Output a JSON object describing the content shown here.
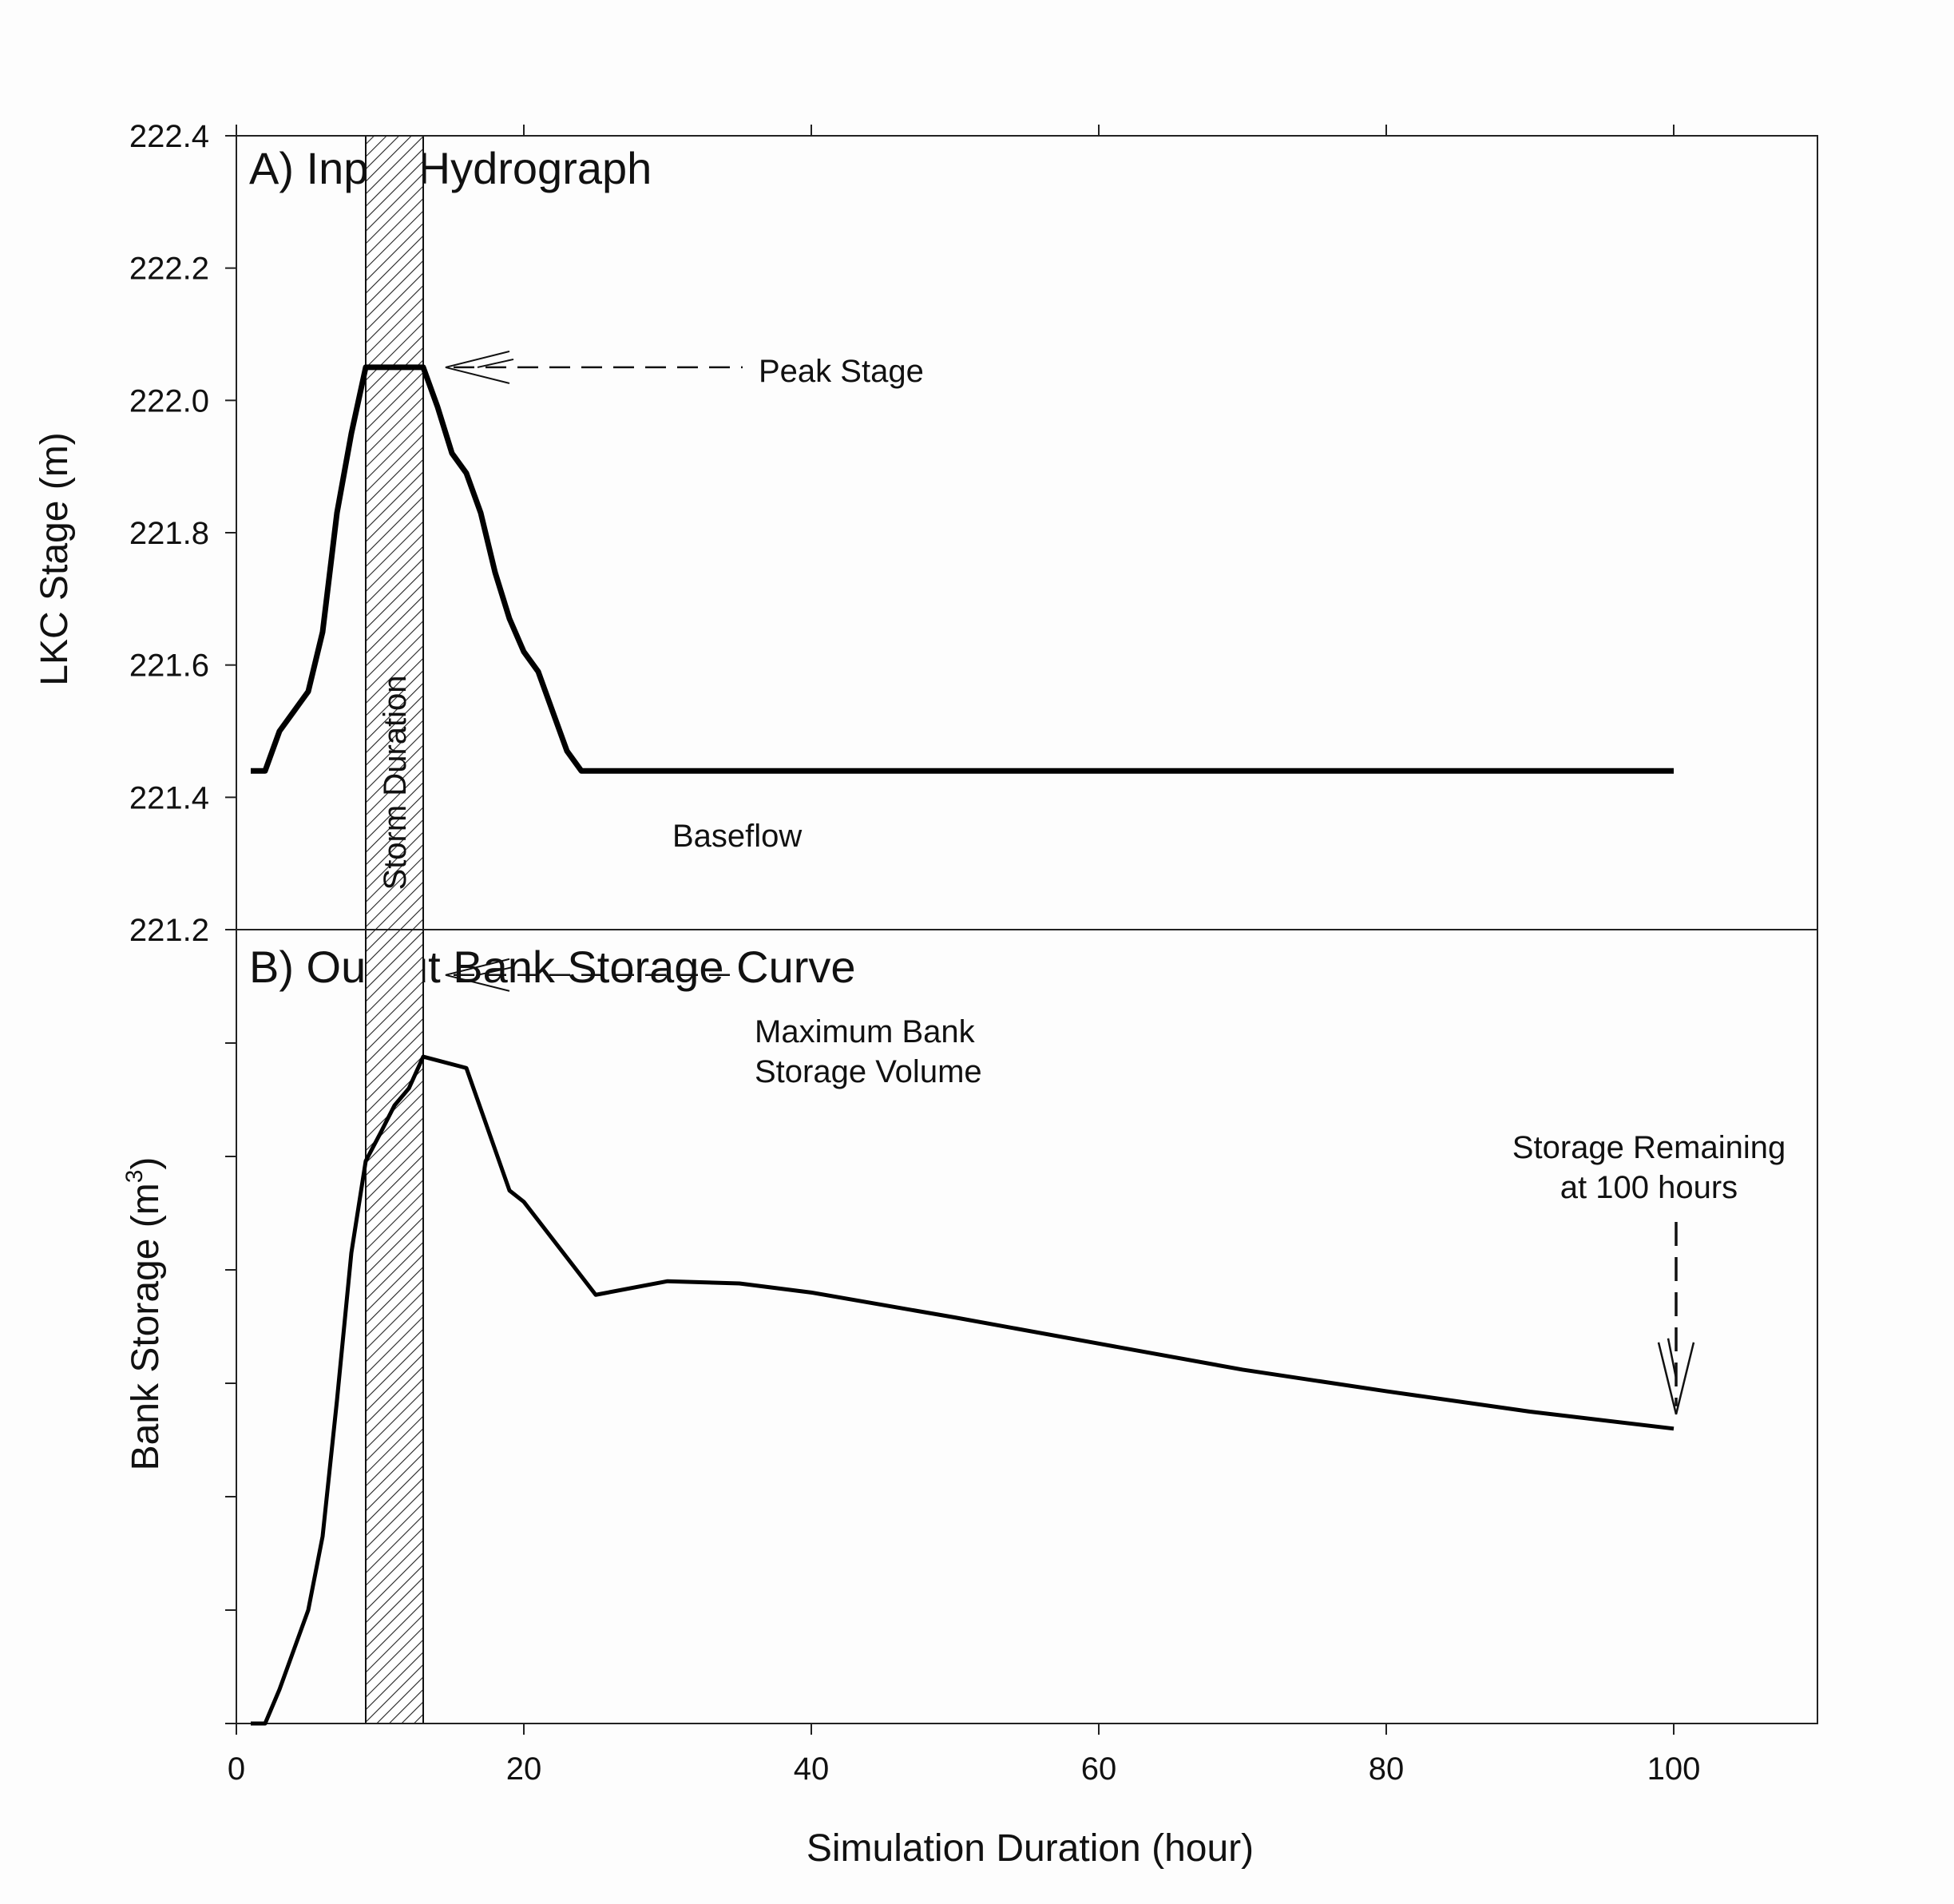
{
  "chart_data": [
    {
      "type": "line",
      "panel": "A",
      "title": "A) Input Hydrograph",
      "xlabel": "Simulation Duration (hour)",
      "ylabel": "LKC Stage (m)",
      "xlim": [
        0,
        110
      ],
      "ylim": [
        221.2,
        222.4
      ],
      "yticks": [
        221.2,
        221.4,
        221.6,
        221.8,
        222.0,
        222.2,
        222.4
      ],
      "ytick_labels": [
        "221.2",
        "221.4",
        "221.6",
        "221.8",
        "222.0",
        "222.2",
        "222.4"
      ],
      "series": [
        {
          "name": "LKC Stage",
          "x": [
            1,
            2,
            3,
            4,
            5,
            6,
            7,
            8,
            9,
            13,
            14,
            15,
            16,
            17,
            18,
            19,
            20,
            21,
            22,
            23,
            24,
            100
          ],
          "y": [
            221.44,
            221.44,
            221.5,
            221.53,
            221.56,
            221.65,
            221.83,
            221.95,
            222.05,
            222.05,
            221.99,
            221.92,
            221.89,
            221.83,
            221.74,
            221.67,
            221.62,
            221.59,
            221.53,
            221.47,
            221.44,
            221.44
          ]
        }
      ],
      "shaded_band": {
        "x_start": 9,
        "x_end": 13,
        "label": "Storm Duration"
      },
      "annotations": {
        "peak": "Peak Stage",
        "baseflow": "Baseflow"
      }
    },
    {
      "type": "line",
      "panel": "B",
      "title": "B) Output Bank Storage Curve",
      "xlabel": "Simulation Duration (hour)",
      "ylabel": "Bank Storage (m³)",
      "ylabel_text": "Bank Storage (m",
      "ylabel_sup": "3",
      "ylabel_close": ")",
      "xlim": [
        0,
        110
      ],
      "xticks": [
        0,
        20,
        40,
        60,
        80,
        100
      ],
      "xtick_labels": [
        "0",
        "20",
        "40",
        "60",
        "80",
        "100"
      ],
      "ylim": [
        0,
        7
      ],
      "y_units": "relative (unlabeled ticks)",
      "series": [
        {
          "name": "Bank Storage",
          "x": [
            1,
            2,
            3,
            4,
            5,
            6,
            7,
            8,
            9,
            10,
            11,
            12,
            13,
            16,
            19,
            20,
            25,
            30,
            35,
            40,
            50,
            60,
            70,
            80,
            90,
            100
          ],
          "y": [
            0.0,
            0.0,
            0.3,
            0.65,
            1.0,
            1.65,
            2.85,
            4.15,
            4.96,
            5.2,
            5.45,
            5.6,
            5.88,
            5.78,
            4.7,
            4.6,
            3.78,
            3.9,
            3.88,
            3.8,
            3.58,
            3.35,
            3.12,
            2.93,
            2.75,
            2.6
          ]
        }
      ],
      "shaded_band": {
        "x_start": 9,
        "x_end": 13
      },
      "annotations": {
        "max_line1": "Maximum Bank",
        "max_line2": "Storage Volume",
        "remain_line1": "Storage Remaining",
        "remain_line2": "at 100 hours"
      }
    }
  ]
}
